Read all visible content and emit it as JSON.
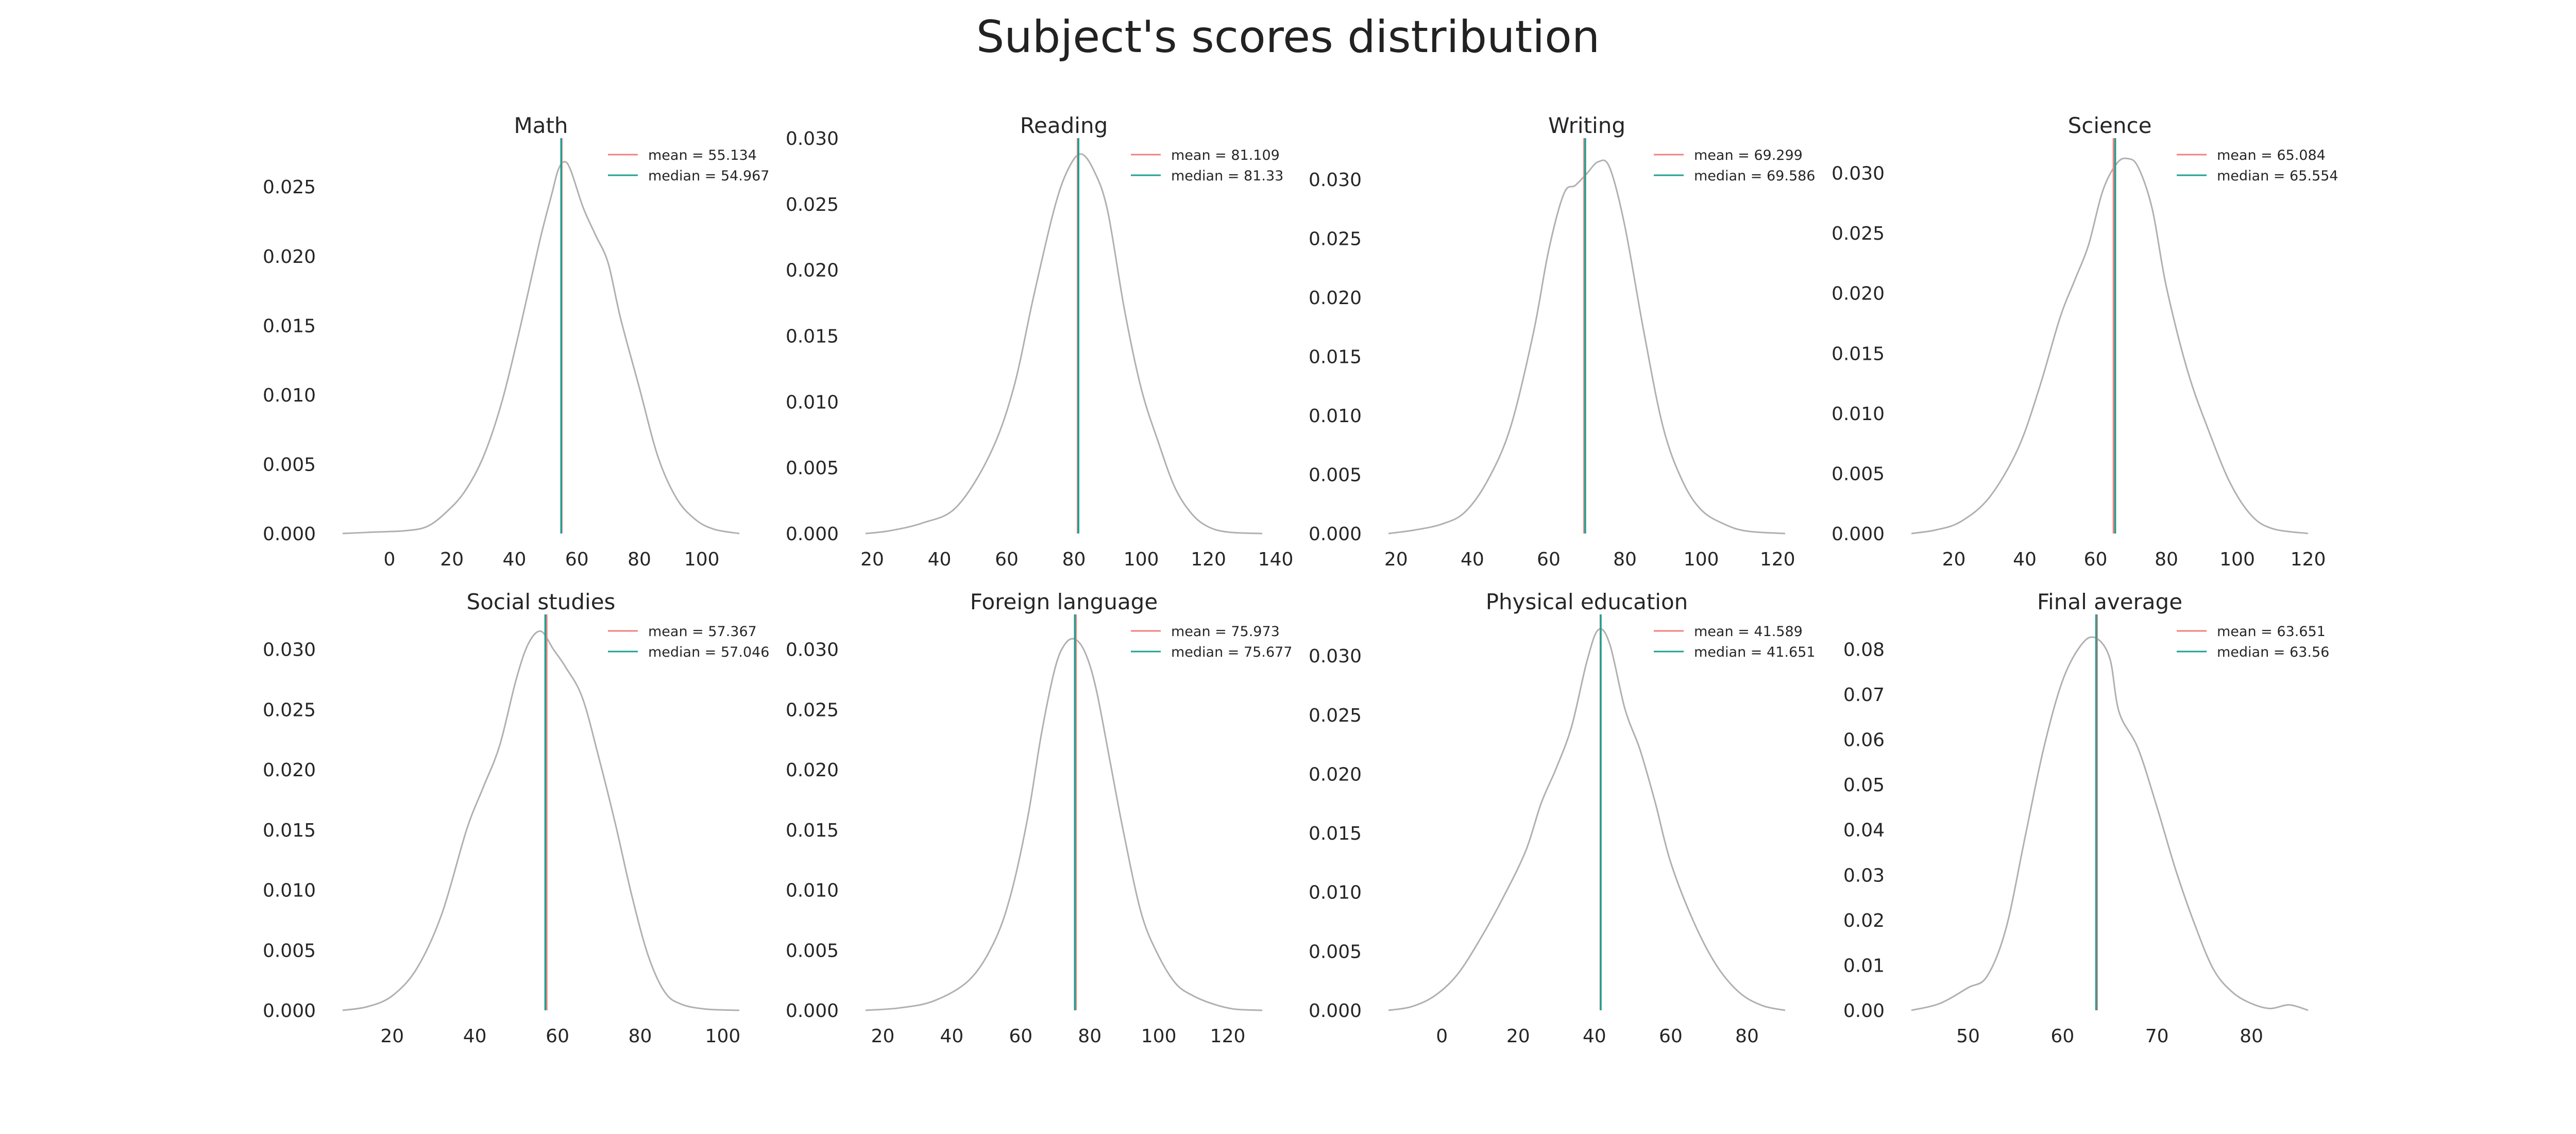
{
  "title": "Subject's scores distribution",
  "colors": {
    "curve": "#b0b0b0",
    "mean": "#f08080",
    "median": "#20a090"
  },
  "chart_data": [
    {
      "type": "line",
      "title": "Math",
      "xlim": [
        -15,
        112
      ],
      "ylim": [
        0,
        0.0285
      ],
      "xticks": [
        0,
        20,
        40,
        60,
        80,
        100
      ],
      "yticks": [
        0.0,
        0.005,
        0.01,
        0.015,
        0.02,
        0.025
      ],
      "ytick_decimals": 3,
      "mean_label": "mean = 55.134",
      "median_label": "median = 54.967",
      "mean": 55.134,
      "median": 54.967,
      "x": [
        -15,
        -5,
        5,
        12,
        18,
        24,
        30,
        36,
        42,
        48,
        52,
        54,
        56,
        58,
        62,
        66,
        70,
        74,
        80,
        86,
        92,
        98,
        104,
        112
      ],
      "y": [
        0.0,
        0.0001,
        0.0002,
        0.0005,
        0.0015,
        0.003,
        0.0055,
        0.0095,
        0.015,
        0.021,
        0.0245,
        0.0262,
        0.0268,
        0.0262,
        0.0235,
        0.0215,
        0.0195,
        0.0155,
        0.0105,
        0.0055,
        0.0025,
        0.001,
        0.0003,
        0.0
      ]
    },
    {
      "type": "line",
      "title": "Reading",
      "xlim": [
        18,
        136
      ],
      "ylim": [
        0,
        0.03
      ],
      "xticks": [
        20,
        40,
        60,
        80,
        100,
        120,
        140
      ],
      "yticks": [
        0.0,
        0.005,
        0.01,
        0.015,
        0.02,
        0.025,
        0.03
      ],
      "ytick_decimals": 3,
      "mean_label": "mean = 81.109",
      "median_label": "median = 81.33",
      "mean": 81.109,
      "median": 81.33,
      "x": [
        18,
        25,
        35,
        45,
        55,
        62,
        68,
        74,
        78,
        82,
        86,
        90,
        95,
        100,
        105,
        110,
        115,
        120,
        126,
        136
      ],
      "y": [
        0.0,
        0.0002,
        0.0008,
        0.002,
        0.006,
        0.011,
        0.018,
        0.0245,
        0.0275,
        0.0288,
        0.0275,
        0.0245,
        0.017,
        0.011,
        0.007,
        0.0035,
        0.0015,
        0.0005,
        0.0001,
        0.0
      ]
    },
    {
      "type": "line",
      "title": "Writing",
      "xlim": [
        18,
        122
      ],
      "ylim": [
        0,
        0.0335
      ],
      "xticks": [
        20,
        40,
        60,
        80,
        100,
        120
      ],
      "yticks": [
        0.0,
        0.005,
        0.01,
        0.015,
        0.02,
        0.025,
        0.03
      ],
      "ytick_decimals": 3,
      "mean_label": "mean = 69.299",
      "median_label": "median = 69.586",
      "mean": 69.299,
      "median": 69.586,
      "x": [
        18,
        25,
        32,
        38,
        44,
        50,
        56,
        60,
        64,
        67,
        70,
        73,
        76,
        80,
        85,
        90,
        95,
        100,
        106,
        112,
        122
      ],
      "y": [
        0.0,
        0.0003,
        0.0008,
        0.0018,
        0.0045,
        0.009,
        0.017,
        0.024,
        0.0288,
        0.0295,
        0.0305,
        0.0315,
        0.031,
        0.026,
        0.017,
        0.009,
        0.0045,
        0.002,
        0.0008,
        0.0002,
        0.0
      ]
    },
    {
      "type": "line",
      "title": "Science",
      "xlim": [
        8,
        120
      ],
      "ylim": [
        0,
        0.0329
      ],
      "xticks": [
        20,
        40,
        60,
        80,
        100,
        120
      ],
      "yticks": [
        0.0,
        0.005,
        0.01,
        0.015,
        0.02,
        0.025,
        0.03
      ],
      "ytick_decimals": 3,
      "mean_label": "mean = 65.084",
      "median_label": "median = 65.554",
      "mean": 65.084,
      "median": 65.554,
      "x": [
        8,
        15,
        22,
        30,
        38,
        44,
        50,
        54,
        58,
        62,
        66,
        69,
        72,
        76,
        80,
        86,
        92,
        98,
        104,
        110,
        120
      ],
      "y": [
        0.0,
        0.0003,
        0.001,
        0.003,
        0.007,
        0.012,
        0.018,
        0.021,
        0.024,
        0.0285,
        0.0308,
        0.0312,
        0.0305,
        0.027,
        0.0205,
        0.0135,
        0.0085,
        0.0042,
        0.0015,
        0.0004,
        0.0
      ]
    },
    {
      "type": "line",
      "title": "Social studies",
      "xlim": [
        8,
        104
      ],
      "ylim": [
        0,
        0.0329
      ],
      "xticks": [
        20,
        40,
        60,
        80,
        100
      ],
      "yticks": [
        0.0,
        0.005,
        0.01,
        0.015,
        0.02,
        0.025,
        0.03
      ],
      "ytick_decimals": 3,
      "mean_label": "mean = 57.367",
      "median_label": "median = 57.046",
      "mean": 57.367,
      "median": 57.046,
      "x": [
        8,
        14,
        20,
        26,
        32,
        38,
        42,
        46,
        50,
        53,
        56,
        59,
        62,
        66,
        70,
        74,
        78,
        82,
        86,
        90,
        96,
        104
      ],
      "y": [
        0.0,
        0.0003,
        0.0012,
        0.0035,
        0.008,
        0.015,
        0.0185,
        0.022,
        0.0275,
        0.0305,
        0.0315,
        0.03,
        0.0285,
        0.026,
        0.021,
        0.0155,
        0.0095,
        0.0045,
        0.0015,
        0.0005,
        0.0001,
        0.0
      ]
    },
    {
      "type": "line",
      "title": "Foreign language",
      "xlim": [
        15,
        130
      ],
      "ylim": [
        0,
        0.0329
      ],
      "xticks": [
        20,
        40,
        60,
        80,
        100,
        120
      ],
      "yticks": [
        0.0,
        0.005,
        0.01,
        0.015,
        0.02,
        0.025,
        0.03
      ],
      "ytick_decimals": 3,
      "mean_label": "mean = 75.973",
      "median_label": "median = 75.677",
      "mean": 75.973,
      "median": 75.677,
      "x": [
        15,
        25,
        35,
        45,
        52,
        57,
        62,
        66,
        70,
        73,
        76,
        79,
        82,
        86,
        90,
        95,
        100,
        105,
        110,
        116,
        122,
        130
      ],
      "y": [
        0.0,
        0.0002,
        0.0008,
        0.0025,
        0.0055,
        0.0095,
        0.016,
        0.023,
        0.0285,
        0.0305,
        0.0308,
        0.0295,
        0.0265,
        0.0205,
        0.0145,
        0.008,
        0.0045,
        0.0022,
        0.0012,
        0.0005,
        0.0001,
        0.0
      ]
    },
    {
      "type": "line",
      "title": "Physical education",
      "xlim": [
        -14,
        90
      ],
      "ylim": [
        0,
        0.0335
      ],
      "xticks": [
        0,
        20,
        40,
        60,
        80
      ],
      "yticks": [
        0.0,
        0.005,
        0.01,
        0.015,
        0.02,
        0.025,
        0.03
      ],
      "ytick_decimals": 3,
      "mean_label": "mean = 41.589",
      "median_label": "median = 41.651",
      "mean": 41.589,
      "median": 41.651,
      "x": [
        -14,
        -8,
        -2,
        4,
        10,
        16,
        22,
        26,
        30,
        34,
        38,
        41,
        44,
        48,
        52,
        56,
        60,
        66,
        72,
        78,
        84,
        90
      ],
      "y": [
        0.0,
        0.0003,
        0.0012,
        0.003,
        0.006,
        0.0095,
        0.0135,
        0.0175,
        0.0205,
        0.024,
        0.0295,
        0.0322,
        0.031,
        0.0255,
        0.022,
        0.0175,
        0.0125,
        0.0075,
        0.0038,
        0.0015,
        0.0004,
        0.0
      ]
    },
    {
      "type": "line",
      "title": "Final average",
      "xlim": [
        44,
        86
      ],
      "ylim": [
        0,
        0.0877
      ],
      "xticks": [
        50,
        60,
        70,
        80
      ],
      "yticks": [
        0.0,
        0.01,
        0.02,
        0.03,
        0.04,
        0.05,
        0.06,
        0.07,
        0.08
      ],
      "ytick_decimals": 2,
      "mean_label": "mean = 63.651",
      "median_label": "median = 63.56",
      "mean": 63.651,
      "median": 63.56,
      "x": [
        44,
        47,
        50,
        52,
        54,
        56,
        58,
        60,
        62,
        63.5,
        65,
        66,
        68,
        70,
        72,
        74,
        76,
        78,
        80,
        82,
        84,
        86
      ],
      "y": [
        0.0,
        0.0015,
        0.005,
        0.0075,
        0.018,
        0.038,
        0.058,
        0.073,
        0.081,
        0.0825,
        0.078,
        0.066,
        0.058,
        0.045,
        0.031,
        0.019,
        0.009,
        0.004,
        0.0015,
        0.0004,
        0.0012,
        0.0
      ]
    }
  ]
}
